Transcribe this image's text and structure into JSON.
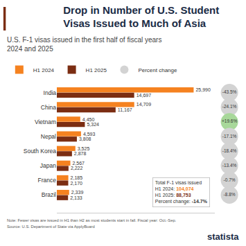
{
  "chart_data": {
    "type": "bar",
    "orientation": "horizontal",
    "title": "Drop in Number of U.S. Student Visas Issued to Much of Asia",
    "subtitle": "U.S. F-1 visas issued in the first half of fiscal years 2024 and 2025",
    "categories": [
      "India",
      "China",
      "Vietnam",
      "Nepal",
      "South Korea",
      "Japan",
      "France",
      "Brazil"
    ],
    "series": [
      {
        "name": "H1 2024",
        "color": "#f58220",
        "values": [
          25990,
          14709,
          4450,
          4593,
          3525,
          2567,
          2185,
          2339
        ],
        "value_labels": [
          "25,990",
          "14,709",
          "4,450",
          "4,593",
          "3,525",
          "2,567",
          "2,185",
          "2,339"
        ]
      },
      {
        "name": "H1 2025",
        "color": "#7b2d12",
        "values": [
          14697,
          11167,
          5324,
          3808,
          2878,
          2222,
          2170,
          2133
        ],
        "value_labels": [
          "14,697",
          "11,167",
          "5,324",
          "3,808",
          "2,878",
          "2,222",
          "2,170",
          "2,133"
        ]
      }
    ],
    "percent_change": {
      "name": "Percent change",
      "marker": "circle",
      "colors": [
        "#d3d3d3",
        "#d3d3d3",
        "#a8d89a",
        "#d3d3d3",
        "#d3d3d3",
        "#d3d3d3",
        "#d3d3d3",
        "#d3d3d3"
      ],
      "values": [
        -43.5,
        -24.1,
        19.6,
        -17.1,
        -18.4,
        -13.4,
        -0.7,
        -8.8
      ],
      "value_labels": [
        "-43.5%",
        "-24.1%",
        "+19.6%",
        "-17.1%",
        "-18.4%",
        "-13.4%",
        "-0.7%",
        "-8.8%"
      ]
    },
    "xlim": [
      0,
      30000
    ],
    "tick_labels": "y",
    "grid": false,
    "data_labels": true,
    "legend": "top",
    "annotation": {
      "text": "Total F-1 visas issued",
      "items": [
        {
          "label": "H1 2024:",
          "value": "104,074",
          "color": "#f58220"
        },
        {
          "label": "H1 2025:",
          "value": "88,753",
          "color": "#7b2d12"
        },
        {
          "label": "Percent change:",
          "value": "-14.7%",
          "color": "#333333"
        }
      ]
    },
    "note": "Note: Fewer visas are issued in H1 than H2 as most students start in fall. Fiscal year: Oct.-Sep.",
    "source": "Source: U.S. Department of State via ApplyBoard",
    "logo": "statista"
  }
}
